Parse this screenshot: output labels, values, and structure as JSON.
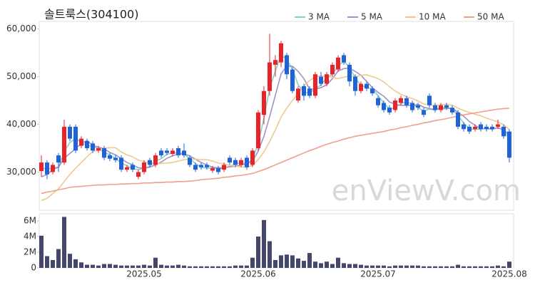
{
  "chart_data": [
    {
      "type": "candlestick",
      "title": "솔트룩스(304100)",
      "watermark": "enViewV.com",
      "up_color": "#e8232a",
      "down_color": "#1e64d8",
      "open": [
        30200,
        32000,
        30000,
        33500,
        32000,
        39500,
        39500,
        35500,
        36500,
        36000,
        34500,
        35000,
        33500,
        33000,
        33000,
        30500,
        31500,
        29000,
        30000,
        32500,
        31500,
        34500,
        34500,
        33800,
        35000,
        34500,
        33000,
        31500,
        31500,
        31500,
        30300,
        30800,
        30500,
        33000,
        32500,
        31500,
        33000,
        31500,
        35000,
        42000,
        47000,
        52500,
        53000,
        54500,
        51500,
        45000,
        48000,
        47500,
        46000,
        50000,
        48500,
        50500,
        51500,
        54500,
        52500,
        50000,
        47000,
        48500,
        47500,
        45500,
        44500,
        43500,
        43000,
        44500,
        45500,
        44500,
        44000,
        43000,
        46000,
        44000,
        43000,
        44000,
        43500,
        42500,
        40000,
        39500,
        39000,
        40000,
        39500,
        39500,
        39500,
        39500,
        38500
      ],
      "high": [
        33500,
        32500,
        32000,
        34000,
        41000,
        40000,
        40000,
        37500,
        37000,
        36500,
        35500,
        35500,
        34000,
        33500,
        33500,
        31500,
        32000,
        30500,
        32500,
        33000,
        34000,
        35000,
        35000,
        35000,
        35500,
        36000,
        33500,
        32000,
        32000,
        32000,
        31300,
        31300,
        32000,
        33500,
        33000,
        33000,
        33500,
        35000,
        43000,
        48000,
        59000,
        54500,
        57500,
        55000,
        52000,
        48000,
        48500,
        48000,
        51000,
        51000,
        51000,
        53000,
        54500,
        55000,
        53000,
        50500,
        49000,
        49000,
        48000,
        46000,
        45000,
        44000,
        45500,
        46000,
        46000,
        45000,
        44500,
        43500,
        46500,
        44500,
        44500,
        44500,
        44000,
        43000,
        40500,
        40000,
        40000,
        40500,
        40000,
        40000,
        41000,
        40000,
        39000
      ],
      "low": [
        29000,
        28500,
        29500,
        30000,
        31500,
        36500,
        34000,
        35000,
        34500,
        34000,
        34000,
        32500,
        32300,
        32000,
        30000,
        30000,
        30000,
        28500,
        29500,
        31000,
        31000,
        33000,
        33500,
        33300,
        33000,
        33000,
        31000,
        30000,
        30500,
        30500,
        29800,
        29500,
        30000,
        31500,
        31000,
        31000,
        30500,
        31000,
        34500,
        40000,
        46000,
        50000,
        52000,
        49500,
        46500,
        44500,
        45000,
        45500,
        45500,
        48000,
        48000,
        50000,
        51000,
        52500,
        48000,
        46000,
        46500,
        47000,
        46000,
        43500,
        42500,
        42000,
        42500,
        44000,
        43500,
        42500,
        43000,
        41500,
        43500,
        42500,
        42500,
        43000,
        42000,
        39000,
        38500,
        38000,
        38500,
        38500,
        38500,
        38500,
        39000,
        37000,
        32000
      ],
      "close": [
        32000,
        29500,
        31500,
        32000,
        39500,
        37000,
        34500,
        37000,
        35000,
        34500,
        35000,
        33000,
        32800,
        32500,
        30500,
        31000,
        30500,
        30000,
        32000,
        31500,
        33500,
        33500,
        34000,
        34500,
        33500,
        33500,
        31500,
        30500,
        31000,
        31000,
        30800,
        30000,
        31500,
        32000,
        31500,
        32500,
        31000,
        34500,
        42500,
        47000,
        53000,
        53500,
        57000,
        50500,
        47000,
        47500,
        46000,
        46000,
        50500,
        48500,
        50500,
        52500,
        54000,
        53000,
        49000,
        47000,
        48500,
        47500,
        46500,
        44000,
        43000,
        42500,
        45000,
        45500,
        44000,
        43000,
        43500,
        42000,
        44000,
        43000,
        44000,
        43500,
        42500,
        39500,
        39000,
        38500,
        39500,
        39000,
        39000,
        39000,
        40000,
        37500,
        33000
      ],
      "series": [
        {
          "name": "3 MA",
          "color": "#7fd3c3",
          "values": [
            31000,
            30500,
            31000,
            31000,
            34300,
            36200,
            37000,
            36200,
            35500,
            35500,
            34800,
            34200,
            33600,
            32800,
            31900,
            31300,
            30700,
            30500,
            30800,
            31200,
            32300,
            32800,
            33700,
            34000,
            34000,
            33800,
            32800,
            31800,
            31000,
            30800,
            30900,
            30600,
            30800,
            31200,
            31700,
            32000,
            31700,
            32700,
            36000,
            41300,
            47500,
            51200,
            54500,
            53700,
            51500,
            48300,
            46800,
            46500,
            47500,
            48300,
            49800,
            50500,
            52300,
            53200,
            52000,
            49700,
            48200,
            47700,
            47500,
            46000,
            44500,
            43200,
            43500,
            44300,
            44800,
            44200,
            43500,
            42800,
            43200,
            43000,
            43700,
            43500,
            43300,
            41800,
            40300,
            39000,
            39000,
            39000,
            39200,
            39000,
            39300,
            38800,
            36800
          ]
        },
        {
          "name": "5 MA",
          "color": "#a58fc7",
          "values": [
            29000,
            29500,
            30500,
            31000,
            32900,
            33900,
            34900,
            36000,
            36600,
            35600,
            35200,
            34900,
            34100,
            33600,
            32800,
            32000,
            31500,
            30900,
            30800,
            31000,
            31500,
            32100,
            32900,
            33400,
            33800,
            33800,
            33400,
            32700,
            32000,
            31500,
            31000,
            30900,
            30900,
            31100,
            31200,
            31500,
            31700,
            32300,
            34400,
            37500,
            41600,
            46100,
            50600,
            52200,
            52200,
            51100,
            49600,
            47400,
            47400,
            47700,
            48300,
            49600,
            51200,
            51700,
            51800,
            51100,
            50300,
            49000,
            47700,
            46700,
            45900,
            44700,
            44200,
            44000,
            44000,
            44000,
            44200,
            43600,
            43300,
            43100,
            43300,
            43300,
            43400,
            42500,
            41700,
            40600,
            39800,
            39100,
            39100,
            39000,
            39300,
            38900,
            37700
          ]
        },
        {
          "name": "10 MA",
          "color": "#f0c890",
          "values": [
            24000,
            24500,
            25500,
            26500,
            28000,
            29500,
            30800,
            32000,
            33200,
            34300,
            34600,
            35000,
            35100,
            35100,
            34200,
            33600,
            33200,
            32500,
            32200,
            31900,
            31800,
            31800,
            31900,
            32000,
            32300,
            32600,
            32700,
            32700,
            32600,
            32600,
            32300,
            31900,
            31700,
            31400,
            31200,
            31100,
            31000,
            31400,
            32600,
            34200,
            36400,
            38800,
            41500,
            43400,
            45000,
            46500,
            48000,
            49200,
            50000,
            50200,
            50000,
            49900,
            49600,
            49900,
            50100,
            50000,
            50300,
            50400,
            50000,
            49600,
            48900,
            47900,
            47000,
            46300,
            45800,
            45400,
            44900,
            44300,
            44100,
            44000,
            44100,
            44200,
            44000,
            43400,
            42900,
            42500,
            42100,
            41800,
            41300,
            40900,
            40500,
            39900,
            38900
          ]
        },
        {
          "name": "50 MA",
          "color": "#f0a08a",
          "values": [
            25500,
            25800,
            26000,
            26300,
            26500,
            26800,
            26900,
            27000,
            27100,
            27200,
            27300,
            27300,
            27400,
            27400,
            27500,
            27500,
            27600,
            27600,
            27700,
            27700,
            27800,
            27800,
            27900,
            27900,
            28000,
            28000,
            28100,
            28200,
            28400,
            28500,
            28600,
            28700,
            28900,
            29000,
            29200,
            29300,
            29500,
            29700,
            30100,
            30500,
            31000,
            31500,
            32000,
            32500,
            33000,
            33500,
            34000,
            34500,
            34900,
            35400,
            35800,
            36200,
            36500,
            36900,
            37200,
            37500,
            37700,
            37900,
            38100,
            38300,
            38500,
            38800,
            39000,
            39300,
            39500,
            39800,
            40000,
            40300,
            40500,
            40800,
            41000,
            41200,
            41500,
            41700,
            42000,
            42200,
            42400,
            42600,
            42800,
            43000,
            43200,
            43300,
            43400
          ]
        }
      ],
      "ylim": [
        22000,
        61600
      ],
      "yticks": [
        {
          "value": 30000,
          "label": "30,000"
        },
        {
          "value": 40000,
          "label": "40,000"
        },
        {
          "value": 50000,
          "label": "50,000"
        },
        {
          "value": 60000,
          "label": "60,000"
        }
      ]
    },
    {
      "type": "bar",
      "color": "#44466a",
      "categories": [
        null,
        null,
        null,
        null,
        null,
        null,
        null,
        null,
        null,
        null,
        null,
        null,
        null,
        null,
        null,
        null,
        null,
        null,
        "2025.05",
        null,
        null,
        null,
        null,
        null,
        null,
        null,
        null,
        null,
        null,
        null,
        null,
        null,
        null,
        null,
        null,
        null,
        null,
        null,
        "2025.06",
        null,
        null,
        null,
        null,
        null,
        null,
        null,
        null,
        null,
        null,
        null,
        null,
        null,
        null,
        null,
        null,
        null,
        null,
        null,
        null,
        "2025.07",
        null,
        null,
        null,
        null,
        null,
        null,
        null,
        null,
        null,
        null,
        null,
        null,
        null,
        null,
        null,
        null,
        null,
        null,
        null,
        null,
        null,
        null,
        "2025.08"
      ],
      "values": [
        4100000,
        1500000,
        1000000,
        2400000,
        6500000,
        1800000,
        1100000,
        700000,
        400000,
        400000,
        300000,
        500000,
        500000,
        400000,
        300000,
        300000,
        300000,
        300000,
        400000,
        300000,
        1300000,
        400000,
        300000,
        300000,
        400000,
        300000,
        200000,
        200000,
        200000,
        200000,
        200000,
        200000,
        200000,
        200000,
        300000,
        300000,
        300000,
        1300000,
        4000000,
        6100000,
        3400000,
        1000000,
        1600000,
        1700000,
        1600000,
        1200000,
        900000,
        1900000,
        800000,
        600000,
        800000,
        500000,
        1300000,
        600000,
        500000,
        500000,
        400000,
        300000,
        300000,
        300000,
        300000,
        200000,
        300000,
        300000,
        300000,
        300000,
        300000,
        200000,
        200000,
        200000,
        200000,
        200000,
        200000,
        400000,
        200000,
        200000,
        200000,
        200000,
        200000,
        200000,
        300000,
        200000,
        800000
      ],
      "ylim": [
        0,
        6900000
      ],
      "yticks": [
        0,
        {
          "value": 2000000,
          "label": "2M"
        },
        {
          "value": 4000000,
          "label": "4M"
        },
        {
          "value": 6000000,
          "label": "6M"
        }
      ]
    }
  ]
}
